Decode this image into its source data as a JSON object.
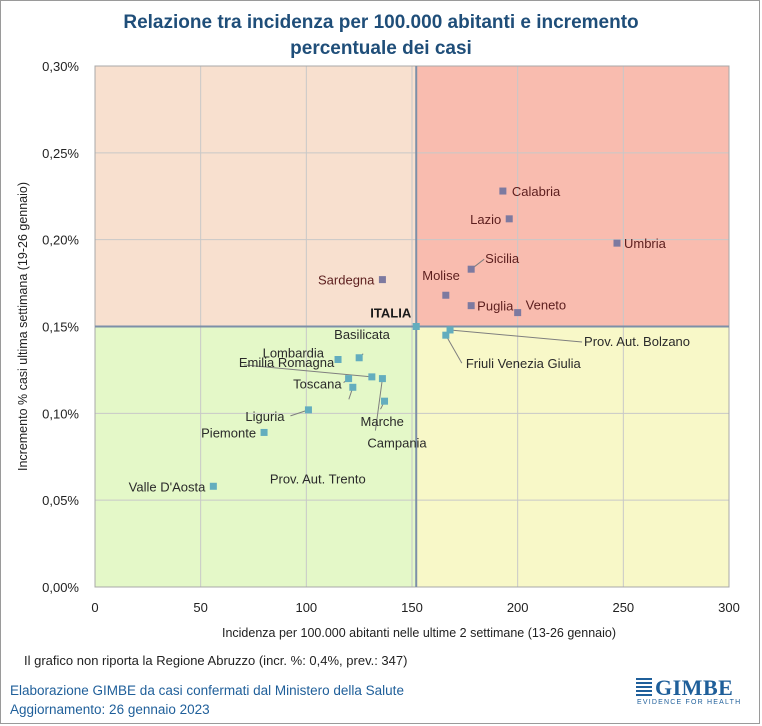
{
  "title_line1": "Relazione tra incidenza per 100.000 abitanti e incremento",
  "title_line2": "percentuale dei casi",
  "note": "Il grafico non riporta la Regione Abruzzo (incr. %: 0,4%, prev.: 347)",
  "credit_line1": "Elaborazione GIMBE da casi confermati dal Ministero della Salute",
  "credit_line2": "Aggiornamento: 26 gennaio 2023",
  "logo": {
    "name": "GIMBE",
    "tagline": "EVIDENCE FOR HEALTH"
  },
  "colors": {
    "quadrant_top_left": "#f8e0cf",
    "quadrant_top_right": "#f9bcaf",
    "quadrant_bottom_left": "#e4f8c8",
    "quadrant_bottom_right": "#f8f8c8",
    "point_high": "#7d7aa0",
    "point_low": "#63adbe",
    "reference_line": "#7d8fa8",
    "title": "#1f4e79",
    "label_high": "#5c1e1e",
    "label_low": "#2a2a2a"
  },
  "chart_data": {
    "type": "scatter",
    "xlabel": "Incidenza per 100.000 abitanti nelle ultime 2 settimane (13-26 gennaio)",
    "ylabel": "Incremento % casi ultima settimana (19-26 gennaio)",
    "xlim": [
      0,
      300
    ],
    "ylim": [
      0,
      0.3
    ],
    "x_ticks": [
      "0",
      "50",
      "100",
      "150",
      "200",
      "250",
      "300"
    ],
    "y_ticks": [
      "0,00%",
      "0,05%",
      "0,10%",
      "0,15%",
      "0,20%",
      "0,25%",
      "0,30%"
    ],
    "grid": true,
    "reference": {
      "label": "ITALIA",
      "x": 152,
      "y": 0.15
    },
    "points": [
      {
        "name": "Calabria",
        "x": 193,
        "y": 0.228
      },
      {
        "name": "Lazio",
        "x": 196,
        "y": 0.212
      },
      {
        "name": "Umbria",
        "x": 247,
        "y": 0.198
      },
      {
        "name": "Sicilia",
        "x": 178,
        "y": 0.183
      },
      {
        "name": "Sardegna",
        "x": 136,
        "y": 0.177
      },
      {
        "name": "Molise",
        "x": 166,
        "y": 0.168
      },
      {
        "name": "Puglia",
        "x": 178,
        "y": 0.162
      },
      {
        "name": "Veneto",
        "x": 200,
        "y": 0.158
      },
      {
        "name": "Prov. Aut. Bolzano",
        "x": 168,
        "y": 0.148
      },
      {
        "name": "Friuli Venezia Giulia",
        "x": 166,
        "y": 0.145
      },
      {
        "name": "Basilicata",
        "x": 125,
        "y": 0.132
      },
      {
        "name": "Lombardia",
        "x": 115,
        "y": 0.131
      },
      {
        "name": "Emilia Romagna",
        "x": 131,
        "y": 0.121
      },
      {
        "name": "Toscana",
        "x": 120,
        "y": 0.12
      },
      {
        "name": "Campania",
        "x": 136,
        "y": 0.12
      },
      {
        "name": "Prov. Aut. Trento",
        "x": 122,
        "y": 0.115
      },
      {
        "name": "Marche",
        "x": 137,
        "y": 0.107
      },
      {
        "name": "Liguria",
        "x": 101,
        "y": 0.102
      },
      {
        "name": "Piemonte",
        "x": 80,
        "y": 0.089
      },
      {
        "name": "Valle D'Aosta",
        "x": 56,
        "y": 0.058
      }
    ]
  }
}
